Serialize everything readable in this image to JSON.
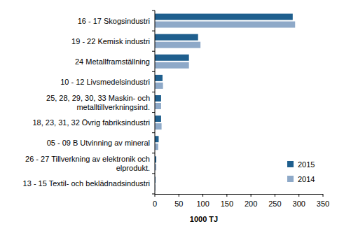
{
  "chart_data": {
    "type": "bar",
    "orientation": "horizontal",
    "categories": [
      "16 - 17 Skogsindustri",
      "19 - 22 Kemisk industri",
      "24 Metallframställning",
      "10 - 12 Livsmedelsindustri",
      "25, 28, 29, 30, 33 Maskin- och metalltillverkningsind.",
      "18, 23, 31, 32 Övrig fabriksindustri",
      "05 - 09 B Utvinning av mineral",
      "26 - 27 Tillverkning av elektronik och elprodukt.",
      "13 - 15 Textil- och beklädnadsindustri"
    ],
    "series": [
      {
        "name": "2015",
        "color": "#1f5f8e",
        "values": [
          287,
          90,
          71,
          16,
          13,
          13,
          8,
          3,
          1.5
        ]
      },
      {
        "name": "2014",
        "color": "#8ea9c8",
        "values": [
          292,
          95,
          71,
          17,
          13,
          14,
          7,
          3,
          1.5
        ]
      }
    ],
    "x_label": "1000 TJ",
    "xlim": [
      0,
      350
    ],
    "xticks": [
      0,
      50,
      100,
      150,
      200,
      250,
      300,
      350
    ],
    "grid": false,
    "legend": "lower right"
  }
}
